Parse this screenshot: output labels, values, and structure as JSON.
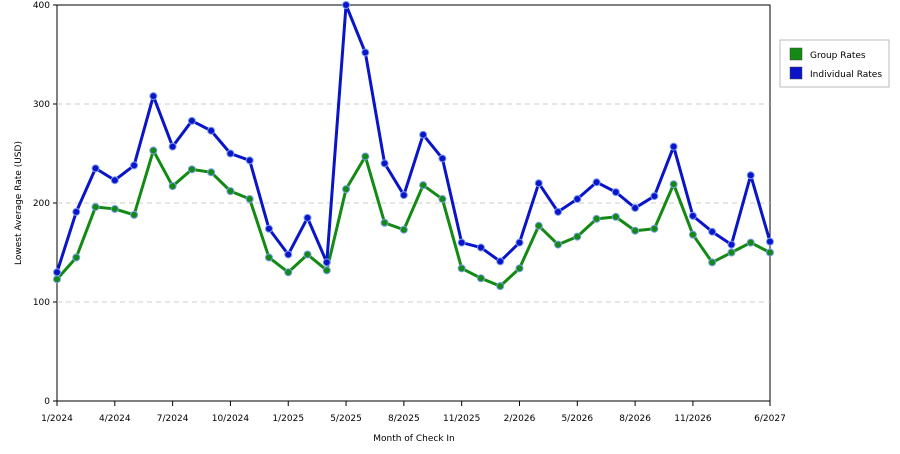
{
  "chart_data": {
    "type": "line",
    "x_label": "Month of Check In",
    "y_label": "Lowest Average Rate (USD)",
    "categories": [
      "1/2024",
      null,
      null,
      "4/2024",
      null,
      null,
      "7/2024",
      null,
      null,
      "10/2024",
      null,
      null,
      "1/2025",
      null,
      null,
      "5/2025",
      null,
      null,
      "8/2025",
      null,
      null,
      "11/2025",
      null,
      null,
      "2/2026",
      null,
      null,
      "5/2026",
      null,
      null,
      "8/2026",
      null,
      null,
      "11/2026",
      null,
      null,
      null,
      "6/2027"
    ],
    "series": [
      {
        "name": "Group Rates",
        "color": "#138a13",
        "values": [
          123,
          145,
          196,
          194,
          188,
          253,
          217,
          234,
          231,
          212,
          204,
          145,
          130,
          148,
          132,
          214,
          247,
          180,
          173,
          218,
          204,
          134,
          124,
          116,
          134,
          177,
          158,
          166,
          184,
          186,
          172,
          174,
          219,
          168,
          140,
          150,
          160,
          150
        ]
      },
      {
        "name": "Individual Rates",
        "color": "#0a14c8",
        "values": [
          130,
          191,
          235,
          223,
          238,
          308,
          257,
          283,
          273,
          250,
          243,
          174,
          148,
          185,
          140,
          400,
          352,
          240,
          208,
          269,
          245,
          160,
          155,
          141,
          160,
          220,
          191,
          204,
          221,
          211,
          195,
          207,
          257,
          187,
          171,
          158,
          228,
          161
        ]
      }
    ],
    "ylim": [
      0,
      400
    ],
    "yticks": [
      0,
      100,
      200,
      300,
      400
    ],
    "grid": true,
    "legend": "top-right"
  }
}
